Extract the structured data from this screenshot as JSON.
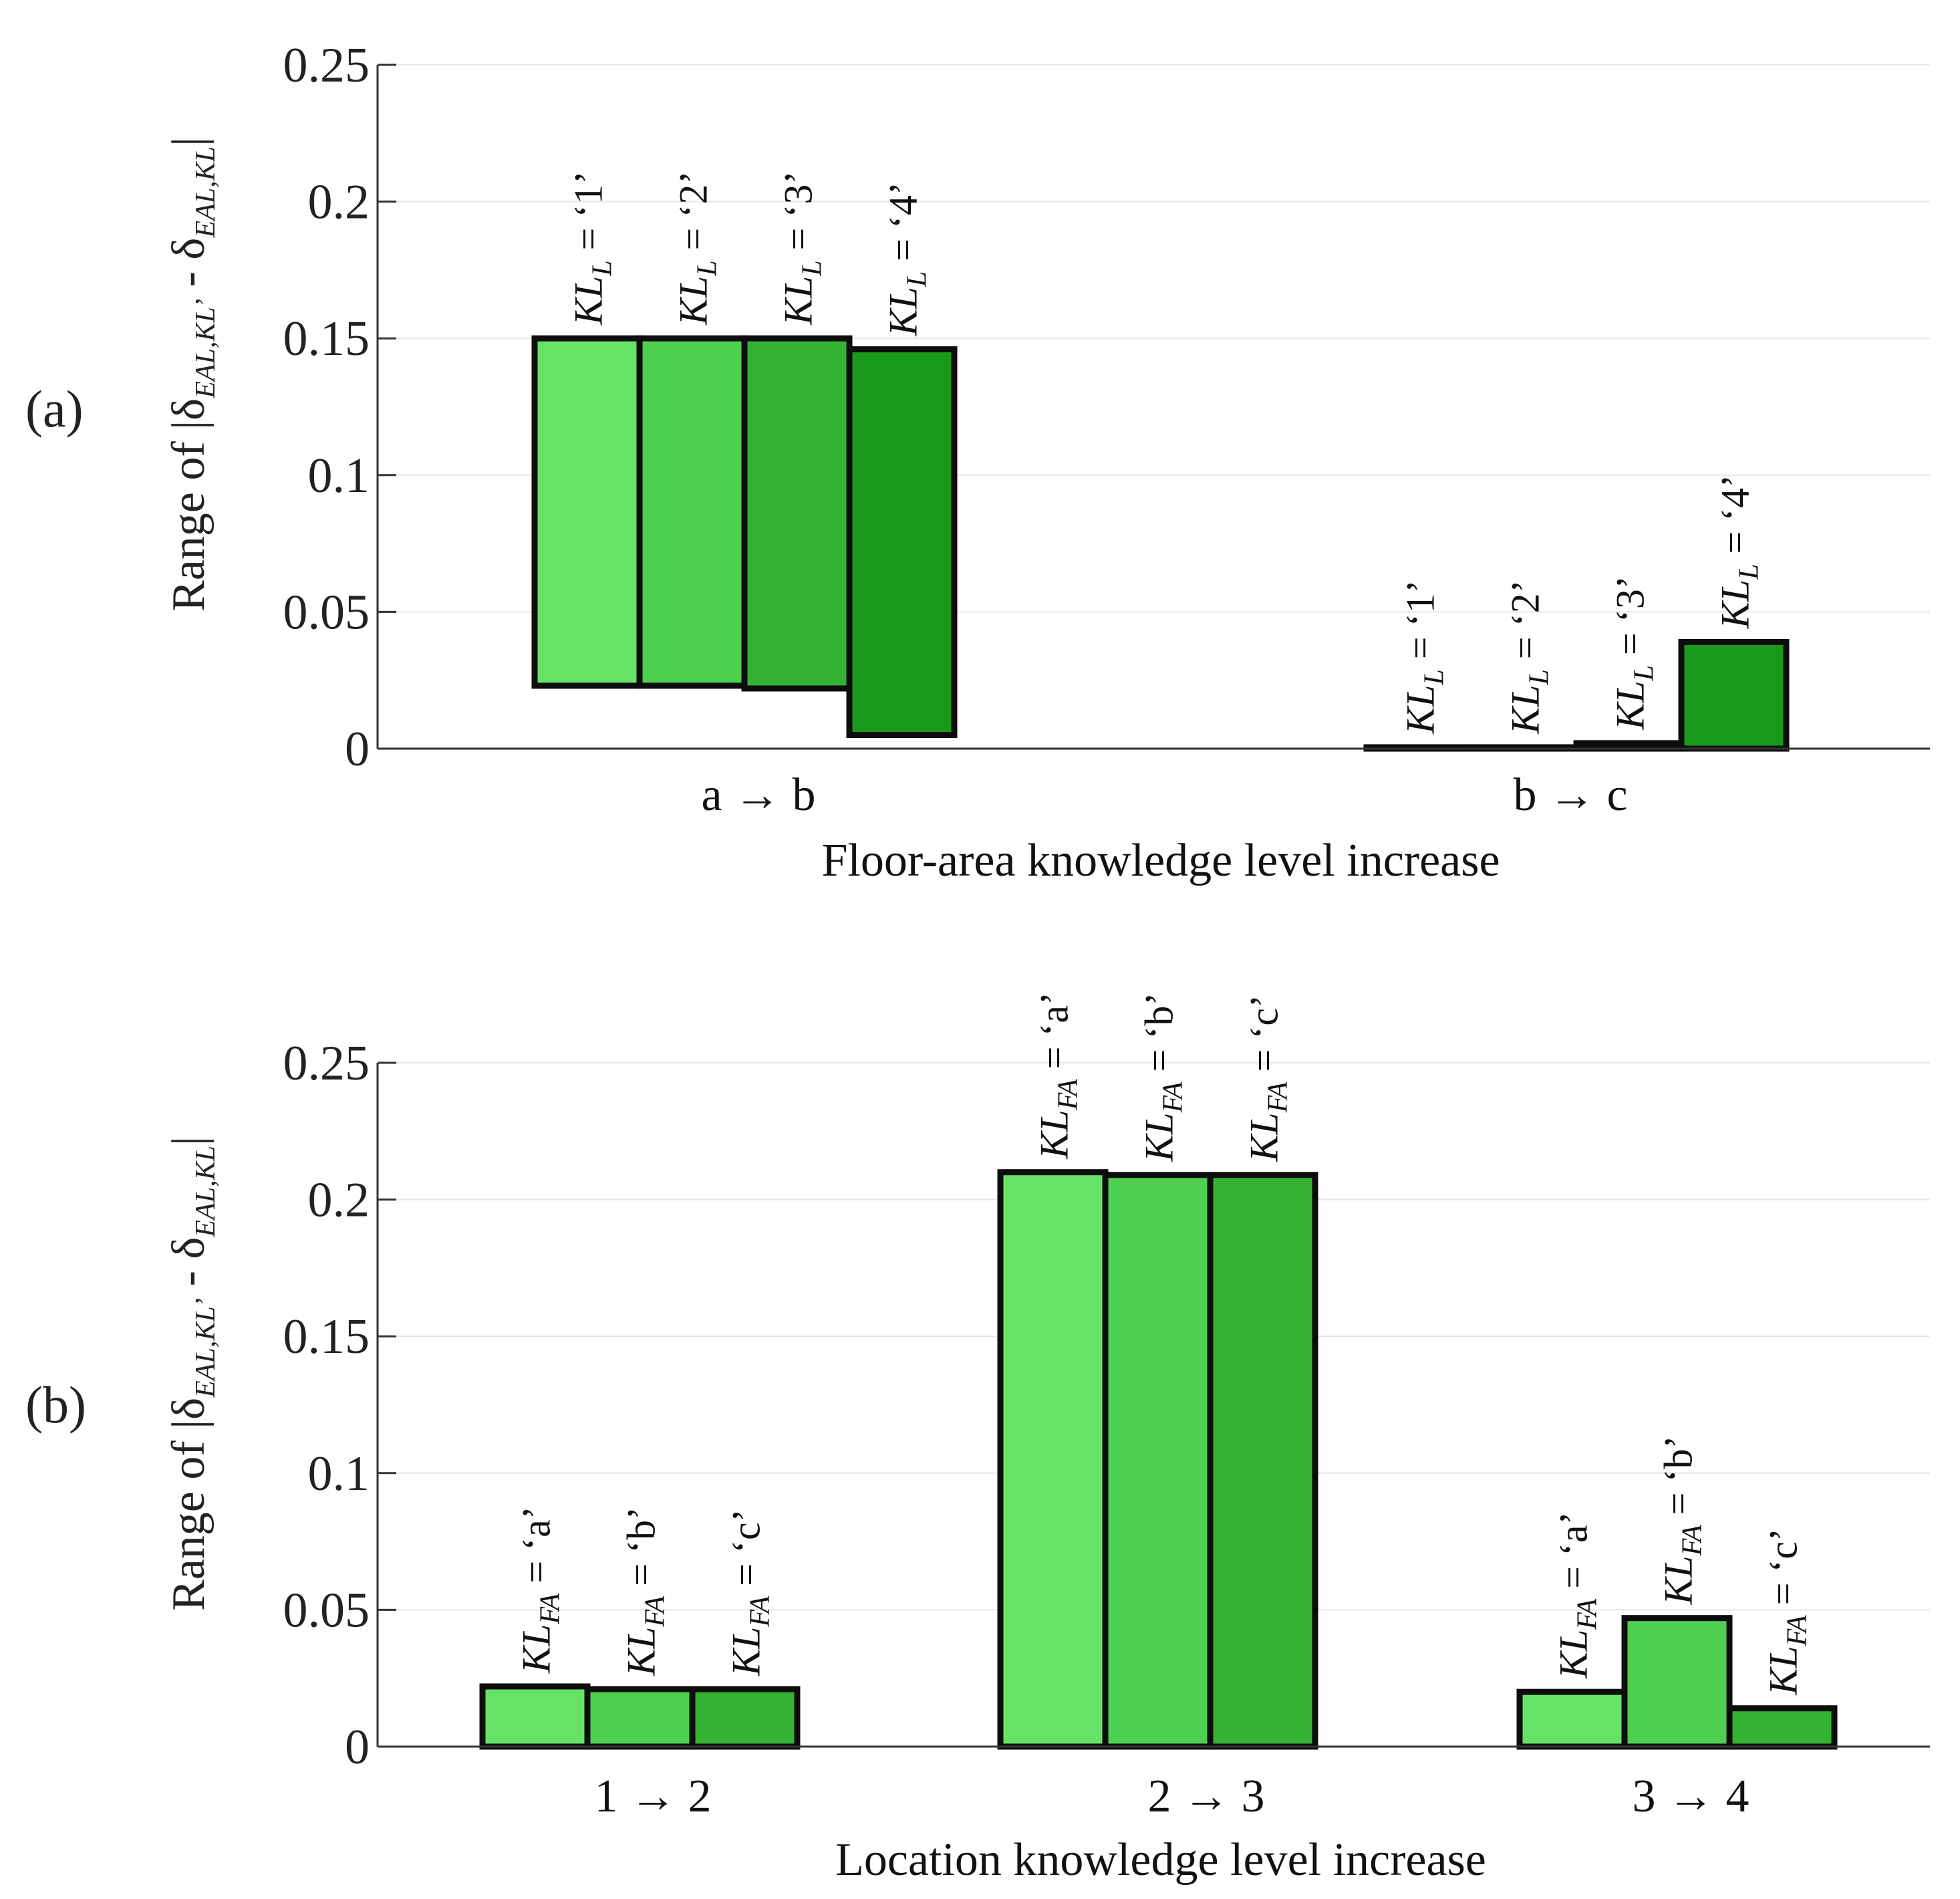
{
  "colors": {
    "shade1": "#66e366",
    "shade2": "#4fcf4f",
    "shade3": "#33b233",
    "shade4": "#1a9a1a",
    "edge": "#0d0d0d",
    "grid": "#e6e6e6",
    "axis": "#333333"
  },
  "chart_data": [
    {
      "panel_label": "(a)",
      "type": "floating-bar",
      "ylabel_prefix": "Range of |δ",
      "ylabel_sub1": "EAL,KL’",
      "ylabel_minus": " - δ",
      "ylabel_sub2": "EAL,KL",
      "ylabel_suffix": "|",
      "xlabel": "Floor-area knowledge level increase",
      "ylim": [
        0,
        0.25
      ],
      "yticks": [
        "0",
        "0.05",
        "0.1",
        "0.15",
        "0.2",
        "0.25"
      ],
      "grid": true,
      "categories": [
        "a → b",
        "b → c"
      ],
      "series": [
        {
          "name": "KL_L = ‘1’",
          "label_main": "KL",
          "label_sub": "L",
          "label_value": " = ‘1’",
          "ranges": [
            [
              0.023,
              0.15
            ],
            [
              0,
              0.0005
            ]
          ]
        },
        {
          "name": "KL_L = ‘2’",
          "label_main": "KL",
          "label_sub": "L",
          "label_value": " = ‘2’",
          "ranges": [
            [
              0.023,
              0.15
            ],
            [
              0,
              0.0005
            ]
          ]
        },
        {
          "name": "KL_L = ‘3’",
          "label_main": "KL",
          "label_sub": "L",
          "label_value": " = ‘3’",
          "ranges": [
            [
              0.022,
              0.15
            ],
            [
              0,
              0.002
            ]
          ]
        },
        {
          "name": "KL_L = ‘4’",
          "label_main": "KL",
          "label_sub": "L",
          "label_value": " = ‘4’",
          "ranges": [
            [
              0.005,
              0.146
            ],
            [
              0,
              0.039
            ]
          ]
        }
      ]
    },
    {
      "panel_label": "(b)",
      "type": "floating-bar",
      "ylabel_prefix": "Range of |δ",
      "ylabel_sub1": "EAL,KL’",
      "ylabel_minus": " - δ",
      "ylabel_sub2": "EAL,KL",
      "ylabel_suffix": "|",
      "xlabel": "Location knowledge level increase",
      "ylim": [
        0,
        0.25
      ],
      "yticks": [
        "0",
        "0.05",
        "0.1",
        "0.15",
        "0.2",
        "0.25"
      ],
      "grid": true,
      "categories": [
        "1 → 2",
        "2 → 3",
        "3 → 4"
      ],
      "series": [
        {
          "name": "KL_FA = ‘a’",
          "label_main": "KL",
          "label_sub": "FA",
          "label_value": " = ‘a’",
          "ranges": [
            [
              0,
              0.022
            ],
            [
              0,
              0.21
            ],
            [
              0,
              0.02
            ]
          ]
        },
        {
          "name": "KL_FA = ‘b’",
          "label_main": "KL",
          "label_sub": "FA",
          "label_value": " = ‘b’",
          "ranges": [
            [
              0,
              0.021
            ],
            [
              0,
              0.209
            ],
            [
              0,
              0.047
            ]
          ]
        },
        {
          "name": "KL_FA = ‘c’",
          "label_main": "KL",
          "label_sub": "FA",
          "label_value": " = ‘c’",
          "ranges": [
            [
              0,
              0.021
            ],
            [
              0,
              0.209
            ],
            [
              0,
              0.014
            ]
          ]
        }
      ]
    }
  ]
}
